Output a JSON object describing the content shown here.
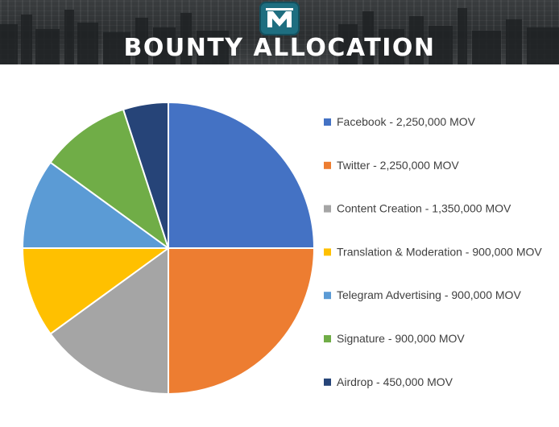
{
  "header": {
    "title": "BOUNTY ALLOCATION"
  },
  "chart_data": {
    "type": "pie",
    "title": "BOUNTY ALLOCATION",
    "categories": [
      "Facebook",
      "Twitter",
      "Content Creation",
      "Translation & Moderation",
      "Telegram Advertising",
      "Signature",
      "Airdrop"
    ],
    "values": [
      2250000,
      2250000,
      1350000,
      900000,
      900000,
      900000,
      450000
    ],
    "unit": "MOV",
    "colors": [
      "#4472c4",
      "#ed7d31",
      "#a5a5a5",
      "#ffc000",
      "#5b9bd5",
      "#70ad47",
      "#264478"
    ],
    "legend_labels": [
      "Facebook - 2,250,000 MOV",
      "Twitter - 2,250,000 MOV",
      "Content Creation - 1,350,000 MOV",
      "Translation & Moderation - 900,000 MOV",
      "Telegram Advertising - 900,000 MOV",
      "Signature - 900,000 MOV",
      "Airdrop - 450,000 MOV"
    ],
    "legend_position": "right",
    "start_angle": "12 o'clock",
    "direction": "clockwise"
  }
}
